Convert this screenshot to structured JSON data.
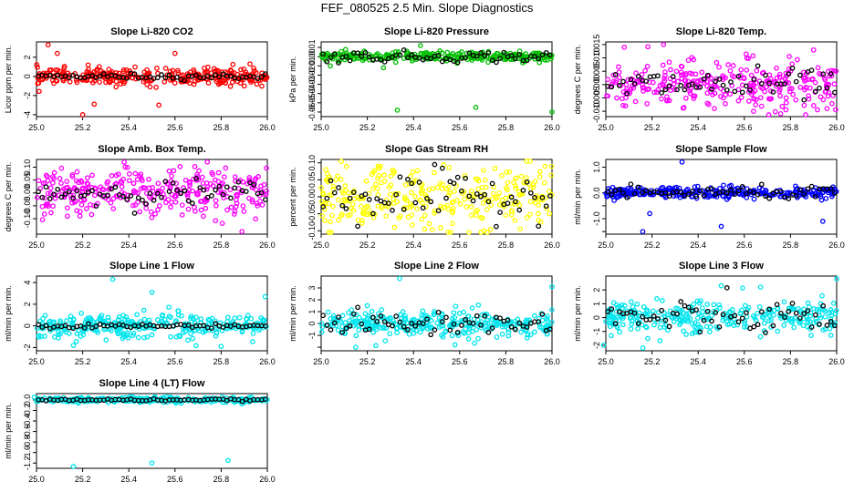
{
  "figure_title": "FEF_080525  2.5 Min. Slope Diagnostics",
  "chart_data": [
    {
      "type": "scatter",
      "title": "Slope Li-820 CO2",
      "ylabel": "Licor ppm per min.",
      "xlim": [
        25.0,
        26.0
      ],
      "ylim": [
        -4.2,
        3.6
      ],
      "yticks": [
        -4,
        -2,
        0,
        2
      ],
      "xticks": [
        25.0,
        25.2,
        25.4,
        25.6,
        25.8,
        26.0
      ],
      "xtick_labels": [
        "25.0",
        "25.2",
        "25.4",
        "25.6",
        "25.8",
        "26.0"
      ],
      "color": "#ff0000",
      "spread": 0.45,
      "outliers": [
        [
          25.05,
          3.3
        ],
        [
          25.09,
          2.4
        ],
        [
          25.2,
          -4.0
        ],
        [
          25.25,
          -2.9
        ],
        [
          25.53,
          -3.0
        ],
        [
          25.6,
          2.4
        ]
      ],
      "black_noise": 0.15
    },
    {
      "type": "scatter",
      "title": "Slope Li-820 Pressure",
      "ylabel": "kPa per min.",
      "xlim": [
        25.0,
        26.0
      ],
      "ylim": [
        -0.065,
        0.016
      ],
      "yticks": [
        -0.06,
        -0.05,
        -0.04,
        -0.03,
        -0.02,
        -0.01,
        0.0,
        0.01
      ],
      "ytick_labels": [
        "-0.06",
        "-0.05",
        "-0.04",
        "-0.03",
        "-0.02",
        "-0.01",
        "0.00",
        "0.01"
      ],
      "xticks": [
        25.0,
        25.2,
        25.4,
        25.6,
        25.8,
        26.0
      ],
      "xtick_labels": [
        "25.0",
        "25.2",
        "25.4",
        "25.6",
        "25.8",
        "26.0"
      ],
      "color": "#00c000",
      "spread": 0.0025,
      "outliers": [
        [
          25.33,
          -0.058
        ],
        [
          25.67,
          -0.055
        ],
        [
          26.0,
          -0.06
        ],
        [
          25.04,
          -0.01
        ],
        [
          25.43,
          0.012
        ],
        [
          25.27,
          -0.012
        ]
      ],
      "black_noise": 0.003
    },
    {
      "type": "scatter",
      "title": "Slope Li-820 Temp.",
      "ylabel": "degrees C per min.",
      "xlim": [
        25.0,
        26.0
      ],
      "ylim": [
        -0.012,
        0.016
      ],
      "yticks": [
        -0.01,
        -0.005,
        0.0,
        0.005,
        0.01,
        0.015
      ],
      "ytick_labels": [
        "-0.010",
        "-0.005",
        "0.000",
        "0.005",
        "0.010",
        "0.015"
      ],
      "xticks": [
        25.0,
        25.2,
        25.4,
        25.6,
        25.8,
        26.0
      ],
      "xtick_labels": [
        "25.0",
        "25.2",
        "25.4",
        "25.6",
        "25.8",
        "26.0"
      ],
      "color": "#ff00ff",
      "spread": 0.0045,
      "outliers": [
        [
          25.08,
          0.014
        ],
        [
          25.25,
          0.015
        ],
        [
          25.64,
          -0.01
        ],
        [
          25.9,
          0.013
        ]
      ],
      "black_noise": 0.003
    },
    {
      "type": "scatter",
      "title": "Slope Amb. Box Temp.",
      "ylabel": "degrees C per min.",
      "xlim": [
        25.0,
        26.0
      ],
      "ylim": [
        -0.16,
        0.13
      ],
      "yticks": [
        -0.1,
        -0.05,
        0.0,
        0.05,
        0.1
      ],
      "ytick_labels": [
        "-0.10",
        "-0.05",
        "0.00",
        "0.05",
        "0.10"
      ],
      "xticks": [
        25.0,
        25.2,
        25.4,
        25.6,
        25.8,
        26.0
      ],
      "xtick_labels": [
        "25.0",
        "25.2",
        "25.4",
        "25.6",
        "25.8",
        "26.0"
      ],
      "color": "#ff00ff",
      "spread": 0.045,
      "outliers": [
        [
          25.38,
          0.12
        ],
        [
          25.74,
          0.12
        ],
        [
          25.89,
          -0.15
        ]
      ],
      "black_noise": 0.025
    },
    {
      "type": "scatter",
      "title": "Slope Gas Stream RH",
      "ylabel": "percent per min.",
      "xlim": [
        25.0,
        26.0
      ],
      "ylim": [
        -0.11,
        0.11
      ],
      "yticks": [
        -0.1,
        -0.05,
        0.0,
        0.05,
        0.1
      ],
      "ytick_labels": [
        "-0.10",
        "-0.05",
        "0.00",
        "0.05",
        "0.10"
      ],
      "xticks": [
        25.0,
        25.2,
        25.4,
        25.6,
        25.8,
        26.0
      ],
      "xtick_labels": [
        "25.0",
        "25.2",
        "25.4",
        "25.6",
        "25.8",
        "26.0"
      ],
      "color": "#ffff00",
      "spread": 0.045,
      "outliers": [
        [
          25.55,
          -0.105
        ],
        [
          25.11,
          0.09
        ],
        [
          25.97,
          0.09
        ]
      ],
      "black_noise": 0.035
    },
    {
      "type": "scatter",
      "title": "Slope Sample Flow",
      "ylabel": "ml/min per min.",
      "xlim": [
        25.0,
        26.0
      ],
      "ylim": [
        -1.6,
        1.3
      ],
      "yticks": [
        -1.5,
        -1.0,
        -0.5,
        0.0,
        0.5,
        1.0
      ],
      "ytick_labels": [
        "",
        "-1.0",
        "",
        "0.0",
        "",
        "1.0"
      ],
      "xticks": [
        25.0,
        25.2,
        25.4,
        25.6,
        25.8,
        26.0
      ],
      "xtick_labels": [
        "25.0",
        "25.2",
        "25.4",
        "25.6",
        "25.8",
        "26.0"
      ],
      "color": "#0000ff",
      "spread": 0.12,
      "outliers": [
        [
          25.33,
          1.2
        ],
        [
          25.16,
          -1.5
        ],
        [
          25.5,
          -1.3
        ],
        [
          25.94,
          -1.1
        ],
        [
          25.19,
          -0.8
        ]
      ],
      "black_noise": 0.12
    },
    {
      "type": "scatter",
      "title": "Slope Line 1 Flow",
      "ylabel": "ml/min per min.",
      "xlim": [
        25.0,
        26.0
      ],
      "ylim": [
        -2.3,
        4.6
      ],
      "yticks": [
        -2,
        0,
        2,
        4
      ],
      "xticks": [
        25.0,
        25.2,
        25.4,
        25.6,
        25.8,
        26.0
      ],
      "xtick_labels": [
        "25.0",
        "25.2",
        "25.4",
        "25.6",
        "25.8",
        "26.0"
      ],
      "color": "#00e5ee",
      "spread": 0.55,
      "outliers": [
        [
          25.33,
          4.3
        ],
        [
          25.5,
          3.1
        ],
        [
          25.99,
          2.7
        ],
        [
          25.16,
          -1.8
        ],
        [
          25.8,
          -1.9
        ]
      ],
      "black_noise": 0.1
    },
    {
      "type": "scatter",
      "title": "Slope Line 2 Flow",
      "ylabel": "ml/min per min.",
      "xlim": [
        25.0,
        26.0
      ],
      "ylim": [
        -2.3,
        4.0
      ],
      "yticks": [
        -2,
        -1,
        0,
        1,
        2,
        3
      ],
      "ytick_labels": [
        "",
        "-1",
        "0",
        "1",
        "2",
        "3"
      ],
      "xticks": [
        25.0,
        25.2,
        25.4,
        25.6,
        25.8,
        26.0
      ],
      "xtick_labels": [
        "25.0",
        "25.2",
        "25.4",
        "25.6",
        "25.8",
        "26.0"
      ],
      "color": "#00e5ee",
      "spread": 0.55,
      "outliers": [
        [
          25.34,
          3.8
        ],
        [
          26.0,
          3.1
        ],
        [
          25.15,
          -2.0
        ],
        [
          25.58,
          -1.8
        ]
      ],
      "black_noise": 0.5
    },
    {
      "type": "scatter",
      "title": "Slope Line 3 Flow",
      "ylabel": "ml/min per min.",
      "xlim": [
        25.0,
        26.0
      ],
      "ylim": [
        -2.4,
        3.0
      ],
      "yticks": [
        -2,
        -1,
        0,
        1,
        2
      ],
      "xticks": [
        25.0,
        25.2,
        25.4,
        25.6,
        25.8,
        26.0
      ],
      "xtick_labels": [
        "25.0",
        "25.2",
        "25.4",
        "25.6",
        "25.8",
        "26.0"
      ],
      "color": "#00e5ee",
      "spread": 0.6,
      "outliers": [
        [
          26.0,
          2.8
        ],
        [
          24.99,
          -2.0
        ],
        [
          25.16,
          -2.2
        ],
        [
          25.5,
          2.3
        ],
        [
          25.67,
          2.2
        ]
      ],
      "black_noise": 0.6
    },
    {
      "type": "scatter",
      "title": "Slope Line 4 (LT) Flow",
      "ylabel": "ml/min per min.",
      "xlim": [
        25.0,
        26.0
      ],
      "ylim": [
        -1.3,
        0.12
      ],
      "yticks": [
        -1.2,
        -1.0,
        -0.8,
        -0.6,
        -0.4,
        -0.2,
        0.0
      ],
      "ytick_labels": [
        "-1.2",
        "-1.0",
        "-0.8",
        "-0.6",
        "-0.4",
        "-0.2",
        "0.0"
      ],
      "xticks": [
        25.0,
        25.2,
        25.4,
        25.6,
        25.8,
        26.0
      ],
      "xtick_labels": [
        "25.0",
        "25.2",
        "25.4",
        "25.6",
        "25.8",
        "26.0"
      ],
      "color": "#00e5ee",
      "spread": 0.025,
      "outliers": [
        [
          25.16,
          -1.28
        ],
        [
          25.5,
          -1.2
        ],
        [
          25.83,
          -1.15
        ],
        [
          24.99,
          0.05
        ]
      ],
      "black_noise": 0.01
    }
  ]
}
